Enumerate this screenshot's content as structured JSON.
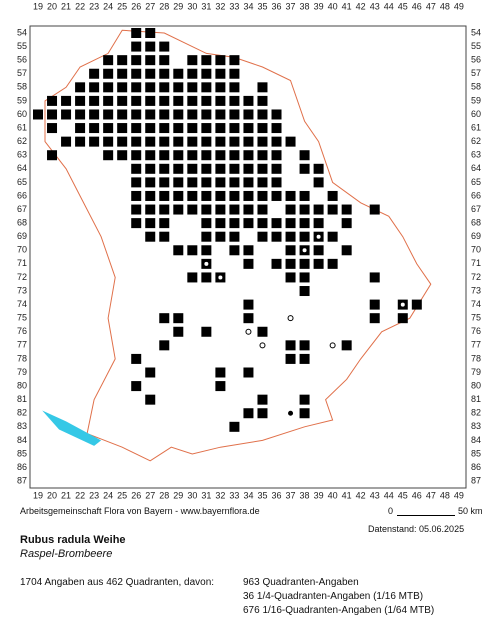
{
  "map": {
    "columns": [
      19,
      20,
      21,
      22,
      23,
      24,
      25,
      26,
      27,
      28,
      29,
      30,
      31,
      32,
      33,
      34,
      35,
      36,
      37,
      38,
      39,
      40,
      41,
      42,
      43,
      44,
      45,
      46,
      47,
      48,
      49
    ],
    "rows": [
      54,
      55,
      56,
      57,
      58,
      59,
      60,
      61,
      62,
      63,
      64,
      65,
      66,
      67,
      68,
      69,
      70,
      71,
      72,
      73,
      74,
      75,
      76,
      77,
      78,
      79,
      80,
      81,
      82,
      83,
      84,
      85,
      86,
      87
    ],
    "square_rows": [
      {
        "row": 54,
        "cols": [
          26,
          27
        ]
      },
      {
        "row": 55,
        "cols": [
          26,
          27,
          28
        ]
      },
      {
        "row": 56,
        "cols": [
          24,
          25,
          26,
          27,
          28,
          30,
          31,
          32,
          33
        ]
      },
      {
        "row": 57,
        "cols": [
          23,
          24,
          25,
          26,
          27,
          28,
          29,
          30,
          31,
          32,
          33
        ]
      },
      {
        "row": 58,
        "cols": [
          22,
          23,
          24,
          25,
          26,
          27,
          28,
          29,
          30,
          31,
          32,
          33,
          35
        ]
      },
      {
        "row": 59,
        "cols": [
          20,
          21,
          22,
          23,
          24,
          25,
          26,
          27,
          28,
          29,
          30,
          31,
          32,
          33,
          34,
          35
        ]
      },
      {
        "row": 60,
        "cols": [
          19,
          20,
          21,
          22,
          23,
          24,
          25,
          26,
          27,
          28,
          29,
          30,
          31,
          32,
          33,
          34,
          35,
          36
        ]
      },
      {
        "row": 61,
        "cols": [
          20,
          22,
          23,
          24,
          25,
          26,
          27,
          28,
          29,
          30,
          31,
          32,
          33,
          34,
          35,
          36
        ]
      },
      {
        "row": 62,
        "cols": [
          21,
          22,
          23,
          24,
          25,
          26,
          27,
          28,
          29,
          30,
          31,
          32,
          33,
          34,
          35,
          36,
          37
        ]
      },
      {
        "row": 63,
        "cols": [
          20,
          24,
          25,
          26,
          27,
          28,
          29,
          30,
          31,
          32,
          33,
          34,
          35,
          36,
          38
        ]
      },
      {
        "row": 64,
        "cols": [
          26,
          27,
          28,
          29,
          30,
          31,
          32,
          33,
          34,
          35,
          36,
          38,
          39
        ]
      },
      {
        "row": 65,
        "cols": [
          26,
          27,
          28,
          29,
          30,
          31,
          32,
          33,
          34,
          35,
          36,
          39
        ]
      },
      {
        "row": 66,
        "cols": [
          26,
          27,
          28,
          29,
          30,
          31,
          32,
          33,
          34,
          35,
          36,
          37,
          38,
          40
        ]
      },
      {
        "row": 67,
        "cols": [
          26,
          27,
          28,
          29,
          30,
          31,
          32,
          33,
          34,
          35,
          37,
          38,
          39,
          40,
          41,
          43
        ]
      },
      {
        "row": 68,
        "cols": [
          26,
          27,
          28,
          31,
          32,
          33,
          34,
          35,
          36,
          37,
          38,
          39,
          41
        ]
      },
      {
        "row": 69,
        "cols": [
          27,
          28,
          31,
          32,
          33,
          35,
          36,
          37,
          38,
          39,
          40
        ]
      },
      {
        "row": 70,
        "cols": [
          29,
          30,
          31,
          33,
          34,
          37,
          38,
          39,
          41
        ]
      },
      {
        "row": 71,
        "cols": [
          31,
          34,
          36,
          37,
          38,
          39,
          40
        ]
      },
      {
        "row": 72,
        "cols": [
          30,
          31,
          32,
          37,
          38,
          43
        ]
      },
      {
        "row": 73,
        "cols": [
          38
        ]
      },
      {
        "row": 74,
        "cols": [
          34,
          43,
          45,
          46
        ]
      },
      {
        "row": 75,
        "cols": [
          28,
          29,
          34,
          43,
          45
        ]
      },
      {
        "row": 76,
        "cols": [
          29,
          31,
          35
        ]
      },
      {
        "row": 77,
        "cols": [
          28,
          37,
          38,
          41
        ]
      },
      {
        "row": 78,
        "cols": [
          26,
          37,
          38
        ]
      },
      {
        "row": 79,
        "cols": [
          27,
          32,
          34
        ]
      },
      {
        "row": 80,
        "cols": [
          26,
          32
        ]
      },
      {
        "row": 81,
        "cols": [
          27,
          35,
          38
        ]
      },
      {
        "row": 82,
        "cols": [
          34,
          35,
          38
        ]
      },
      {
        "row": 83,
        "cols": [
          33
        ]
      }
    ],
    "dots": [
      [
        34,
        71
      ],
      [
        37,
        72
      ],
      [
        38,
        69
      ],
      [
        26,
        78
      ],
      [
        27,
        79
      ],
      [
        26,
        80
      ],
      [
        34,
        82
      ],
      [
        35,
        82
      ],
      [
        37,
        82
      ]
    ],
    "open_circles": [
      [
        32,
        72
      ],
      [
        38,
        70
      ],
      [
        34,
        76
      ],
      [
        35,
        77
      ],
      [
        37,
        75
      ],
      [
        40,
        77
      ],
      [
        45,
        74
      ],
      [
        39,
        69
      ],
      [
        31,
        71
      ]
    ]
  },
  "footer": {
    "credit": "Arbeitsgemeinschaft Flora von Bayern - www.bayernflora.de",
    "scale_start": "0",
    "scale_end": "50 km",
    "date": "Datenstand: 05.06.2025",
    "species": "Rubus radula Weihe",
    "common_name": "Raspel-Brombeere",
    "summary": "1704 Angaben aus 462 Quadranten, davon:",
    "counts": [
      "963 Quadranten-Angaben",
      "36 1/4-Quadranten-Angaben (1/16 MTB)",
      "676 1/16-Quadranten-Angaben (1/64 MTB)"
    ]
  }
}
